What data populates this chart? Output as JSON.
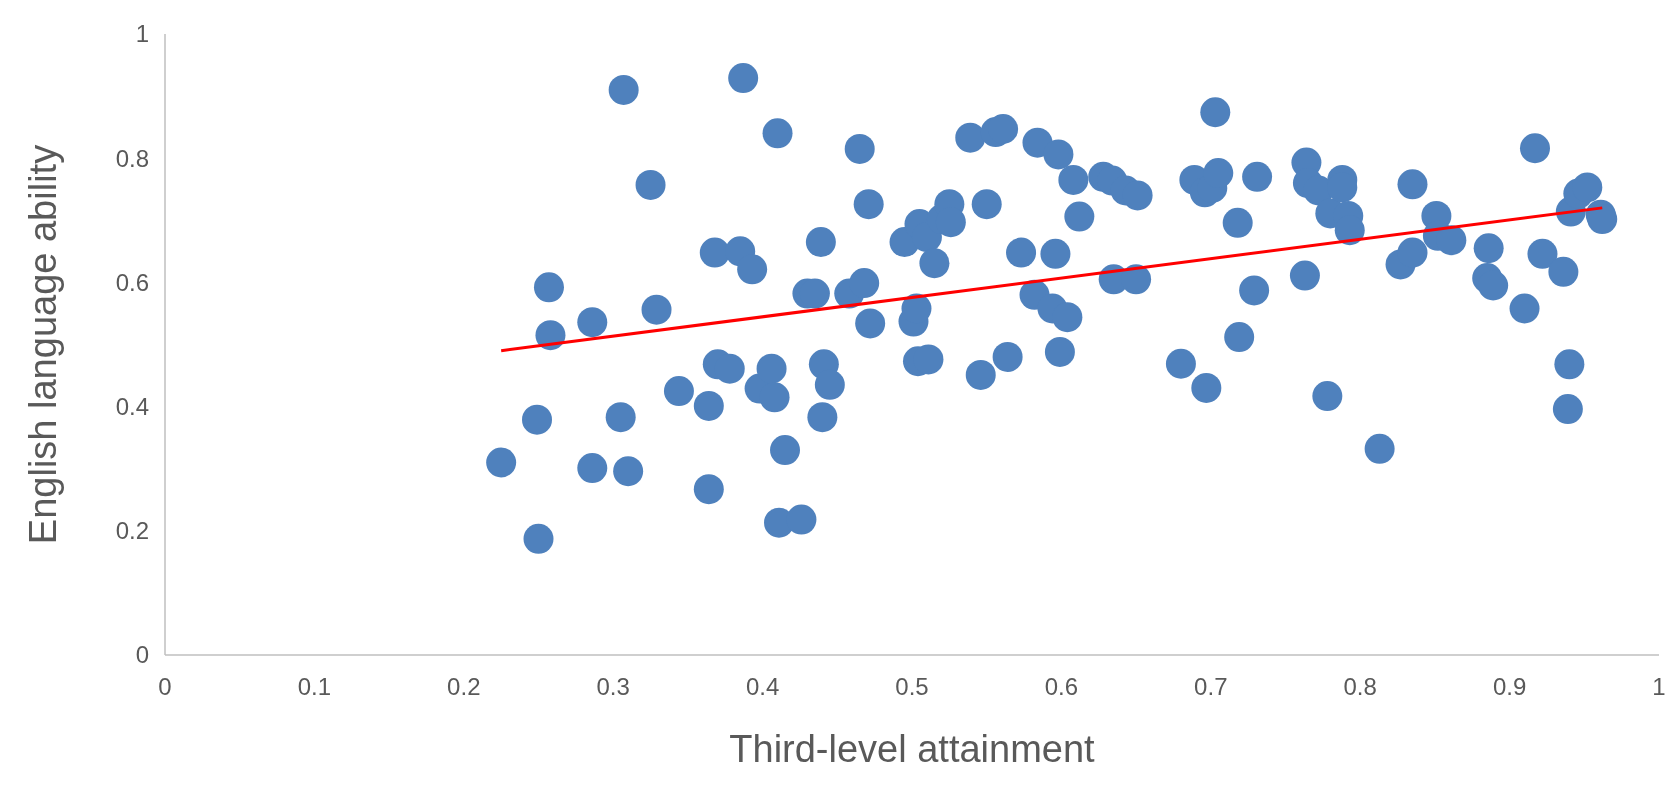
{
  "chart_data": {
    "type": "scatter",
    "xlabel": "Third-level attainment",
    "ylabel": "English language ability",
    "xlim": [
      0,
      1
    ],
    "ylim": [
      0,
      1
    ],
    "xticks": [
      0,
      0.1,
      0.2,
      0.3,
      0.4,
      0.5,
      0.6,
      0.7,
      0.8,
      0.9,
      1
    ],
    "yticks": [
      0,
      0.2,
      0.4,
      0.6,
      0.8,
      1
    ],
    "grid": false,
    "series": [
      {
        "marker": "circle",
        "color": "#4f81bd",
        "x": [
          0.225,
          0.249,
          0.25,
          0.257,
          0.258,
          0.286,
          0.286,
          0.305,
          0.307,
          0.31,
          0.325,
          0.329,
          0.344,
          0.364,
          0.364,
          0.368,
          0.37,
          0.378,
          0.385,
          0.387,
          0.393,
          0.398,
          0.406,
          0.408,
          0.41,
          0.411,
          0.415,
          0.426,
          0.43,
          0.435,
          0.439,
          0.44,
          0.441,
          0.445,
          0.458,
          0.465,
          0.468,
          0.471,
          0.472,
          0.495,
          0.501,
          0.503,
          0.504,
          0.505,
          0.51,
          0.511,
          0.515,
          0.52,
          0.525,
          0.526,
          0.539,
          0.546,
          0.55,
          0.556,
          0.561,
          0.564,
          0.573,
          0.582,
          0.584,
          0.594,
          0.596,
          0.598,
          0.599,
          0.604,
          0.608,
          0.612,
          0.628,
          0.634,
          0.635,
          0.643,
          0.65,
          0.651,
          0.68,
          0.689,
          0.696,
          0.697,
          0.701,
          0.705,
          0.703,
          0.718,
          0.719,
          0.729,
          0.731,
          0.763,
          0.764,
          0.765,
          0.772,
          0.778,
          0.78,
          0.788,
          0.788,
          0.792,
          0.793,
          0.813,
          0.827,
          0.835,
          0.835,
          0.851,
          0.852,
          0.861,
          0.885,
          0.886,
          0.889,
          0.91,
          0.917,
          0.922,
          0.936,
          0.939,
          0.94,
          0.941,
          0.946,
          0.952,
          0.961,
          0.962
        ],
        "values": [
          0.31,
          0.379,
          0.187,
          0.592,
          0.515,
          0.536,
          0.301,
          0.383,
          0.91,
          0.296,
          0.757,
          0.556,
          0.425,
          0.267,
          0.401,
          0.648,
          0.468,
          0.461,
          0.65,
          0.929,
          0.621,
          0.429,
          0.461,
          0.415,
          0.84,
          0.213,
          0.33,
          0.218,
          0.582,
          0.582,
          0.665,
          0.383,
          0.468,
          0.435,
          0.582,
          0.815,
          0.599,
          0.726,
          0.534,
          0.665,
          0.537,
          0.558,
          0.473,
          0.694,
          0.673,
          0.476,
          0.631,
          0.702,
          0.726,
          0.697,
          0.833,
          0.451,
          0.726,
          0.842,
          0.847,
          0.48,
          0.648,
          0.58,
          0.825,
          0.558,
          0.646,
          0.806,
          0.488,
          0.544,
          0.765,
          0.706,
          0.77,
          0.764,
          0.605,
          0.748,
          0.605,
          0.74,
          0.469,
          0.765,
          0.745,
          0.43,
          0.752,
          0.776,
          0.874,
          0.696,
          0.512,
          0.587,
          0.77,
          0.611,
          0.793,
          0.76,
          0.748,
          0.417,
          0.711,
          0.765,
          0.753,
          0.707,
          0.684,
          0.332,
          0.629,
          0.648,
          0.758,
          0.707,
          0.675,
          0.668,
          0.607,
          0.655,
          0.595,
          0.558,
          0.816,
          0.646,
          0.617,
          0.396,
          0.468,
          0.714,
          0.743,
          0.753,
          0.709,
          0.702
        ]
      },
      {
        "type": "line",
        "color": "#ff0000",
        "x": [
          0.225,
          0.962
        ],
        "values": [
          0.49,
          0.72
        ]
      }
    ]
  }
}
